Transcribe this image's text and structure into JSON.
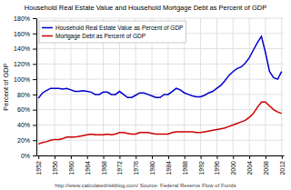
{
  "chart_data": {
    "type": "line",
    "title": "Household Real Estate Value and Household Mortgage Debt as Percent of GDP",
    "ylabel": "Percent of GDP",
    "annotations": [
      "http://www.calculatedriskblog.com/   Source: Federal Reserve Flow of Funds"
    ],
    "x": [
      1952,
      1953,
      1954,
      1955,
      1956,
      1957,
      1958,
      1959,
      1960,
      1961,
      1962,
      1963,
      1964,
      1965,
      1966,
      1967,
      1968,
      1969,
      1970,
      1971,
      1972,
      1973,
      1974,
      1975,
      1976,
      1977,
      1978,
      1979,
      1980,
      1981,
      1982,
      1983,
      1984,
      1985,
      1986,
      1987,
      1988,
      1989,
      1990,
      1991,
      1992,
      1993,
      1994,
      1995,
      1996,
      1997,
      1998,
      1999,
      2000,
      2001,
      2002,
      2003,
      2004,
      2005,
      2006,
      2007,
      2008,
      2009,
      2010,
      2011,
      2012
    ],
    "series": [
      {
        "name": "Household Real Estate Value as Percent of GDP",
        "color": "#0000cc",
        "values": [
          0.75,
          0.82,
          0.85,
          0.88,
          0.88,
          0.88,
          0.87,
          0.88,
          0.86,
          0.84,
          0.84,
          0.85,
          0.84,
          0.83,
          0.8,
          0.8,
          0.83,
          0.83,
          0.8,
          0.8,
          0.84,
          0.8,
          0.76,
          0.76,
          0.79,
          0.82,
          0.82,
          0.8,
          0.78,
          0.76,
          0.76,
          0.8,
          0.8,
          0.84,
          0.88,
          0.86,
          0.82,
          0.8,
          0.78,
          0.77,
          0.77,
          0.79,
          0.82,
          0.84,
          0.88,
          0.92,
          0.98,
          1.05,
          1.1,
          1.14,
          1.16,
          1.21,
          1.28,
          1.38,
          1.48,
          1.56,
          1.35,
          1.1,
          1.02,
          1.0,
          1.1
        ]
      },
      {
        "name": "Mortgage Debt as Percent of GDP",
        "color": "#cc0000",
        "values": [
          0.15,
          0.17,
          0.18,
          0.2,
          0.21,
          0.21,
          0.22,
          0.24,
          0.24,
          0.24,
          0.25,
          0.26,
          0.27,
          0.28,
          0.27,
          0.27,
          0.27,
          0.28,
          0.27,
          0.28,
          0.3,
          0.3,
          0.29,
          0.28,
          0.28,
          0.3,
          0.3,
          0.3,
          0.29,
          0.28,
          0.28,
          0.28,
          0.28,
          0.3,
          0.31,
          0.31,
          0.31,
          0.31,
          0.31,
          0.3,
          0.3,
          0.31,
          0.32,
          0.33,
          0.34,
          0.35,
          0.36,
          0.38,
          0.4,
          0.42,
          0.44,
          0.46,
          0.5,
          0.55,
          0.63,
          0.7,
          0.7,
          0.65,
          0.6,
          0.57,
          0.55
        ]
      }
    ],
    "xlim": [
      1951.5,
      2012.5
    ],
    "xticks": [
      1952,
      1956,
      1960,
      1964,
      1968,
      1972,
      1976,
      1980,
      1984,
      1988,
      1992,
      1996,
      2000,
      2004,
      2008,
      2012
    ],
    "ylim": [
      0,
      1.8
    ],
    "yticks": [
      {
        "value": 0.0,
        "label": "0%"
      },
      {
        "value": 0.2,
        "label": "20%"
      },
      {
        "value": 0.4,
        "label": "40%"
      },
      {
        "value": 0.6,
        "label": "60%"
      },
      {
        "value": 0.8,
        "label": "80%"
      },
      {
        "value": 1.0,
        "label": "100%"
      },
      {
        "value": 1.2,
        "label": "120%"
      },
      {
        "value": 1.4,
        "label": "140%"
      },
      {
        "value": 1.6,
        "label": "160%"
      },
      {
        "value": 1.8,
        "label": "180%"
      }
    ],
    "grid": true,
    "legend": "upper-left"
  }
}
